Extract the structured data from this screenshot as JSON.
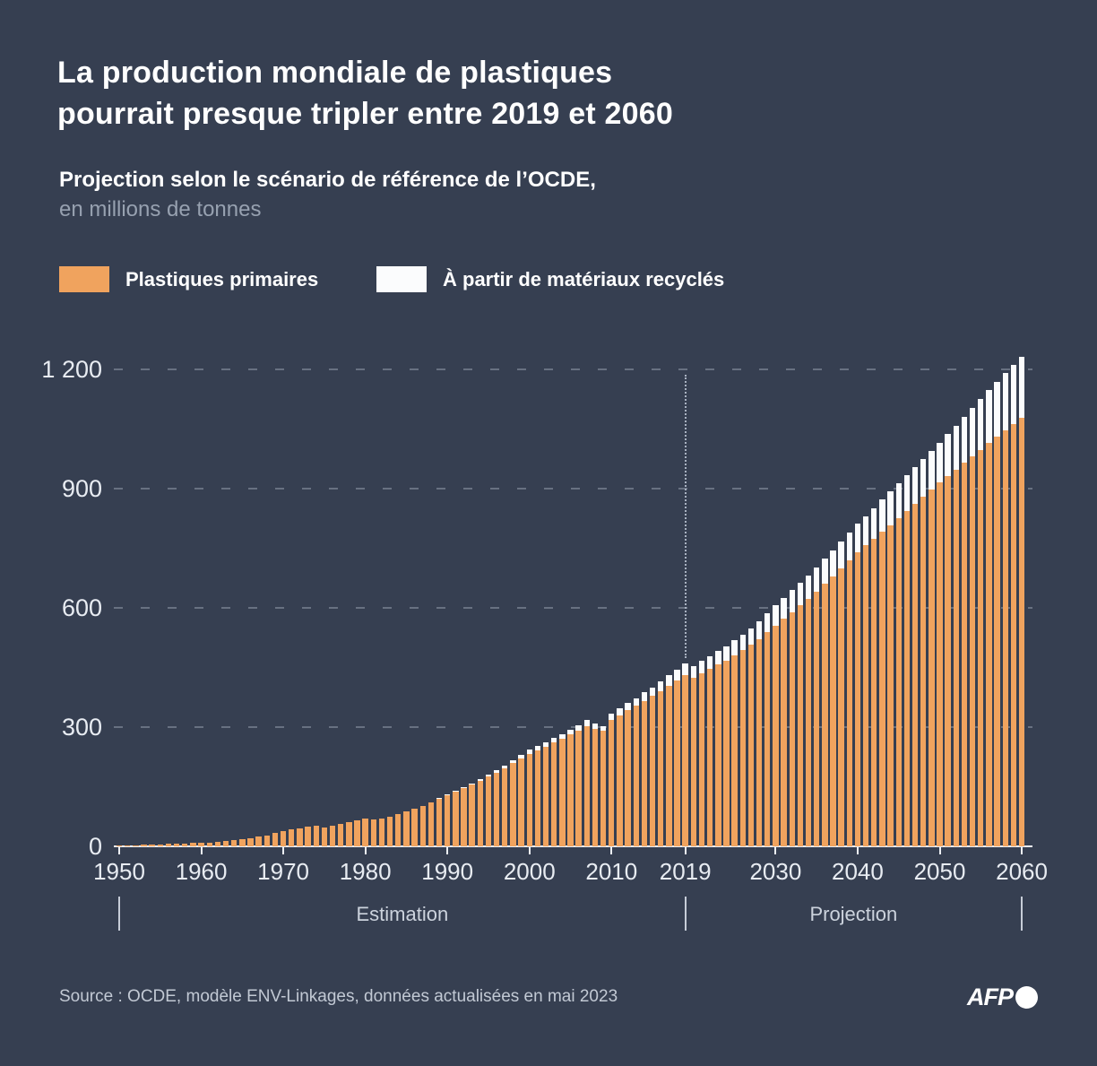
{
  "header": {
    "title": "La production mondiale de plastiques\npourrait presque tripler entre 2019 et 2060",
    "subtitle_bold": "Projection selon le scénario de référence de l’OCDE,",
    "subtitle_muted": "en millions de tonnes"
  },
  "legend": {
    "items": [
      {
        "label": "Plastiques primaires",
        "color": "#f0a35e"
      },
      {
        "label": "À partir de matériaux recyclés",
        "color": "#fbfcfd"
      }
    ]
  },
  "chart_data": {
    "type": "bar",
    "stacked": true,
    "title": "La production mondiale de plastiques pourrait presque tripler entre 2019 et 2060",
    "unit": "millions de tonnes",
    "ylabel": "en millions de tonnes",
    "ylim": [
      0,
      1236
    ],
    "grid": "dashed horizontal",
    "years": [
      1950,
      1951,
      1952,
      1953,
      1954,
      1955,
      1956,
      1957,
      1958,
      1959,
      1960,
      1961,
      1962,
      1963,
      1964,
      1965,
      1966,
      1967,
      1968,
      1969,
      1970,
      1971,
      1972,
      1973,
      1974,
      1975,
      1976,
      1977,
      1978,
      1979,
      1980,
      1981,
      1982,
      1983,
      1984,
      1985,
      1986,
      1987,
      1988,
      1989,
      1990,
      1991,
      1992,
      1993,
      1994,
      1995,
      1996,
      1997,
      1998,
      1999,
      2000,
      2001,
      2002,
      2003,
      2004,
      2005,
      2006,
      2007,
      2008,
      2009,
      2010,
      2011,
      2012,
      2013,
      2014,
      2015,
      2016,
      2017,
      2018,
      2019,
      2020,
      2021,
      2022,
      2023,
      2024,
      2025,
      2026,
      2027,
      2028,
      2029,
      2030,
      2031,
      2032,
      2033,
      2034,
      2035,
      2036,
      2037,
      2038,
      2039,
      2040,
      2041,
      2042,
      2043,
      2044,
      2045,
      2046,
      2047,
      2048,
      2049,
      2050,
      2051,
      2052,
      2053,
      2054,
      2055,
      2056,
      2057,
      2058,
      2059,
      2060
    ],
    "series": [
      {
        "name": "Plastiques primaires",
        "color": "#f0a35e",
        "values": [
          2,
          3,
          3,
          4,
          4,
          5,
          6,
          7,
          7,
          8,
          9,
          10,
          12,
          14,
          16,
          18,
          21,
          24,
          28,
          33,
          38,
          42,
          46,
          50,
          53,
          48,
          52,
          56,
          61,
          66,
          70,
          68,
          70,
          75,
          81,
          88,
          95,
          102,
          110,
          119,
          128,
          137,
          146,
          155,
          165,
          175,
          186,
          197,
          209,
          221,
          233,
          242,
          251,
          261,
          271,
          281,
          292,
          303,
          296,
          290,
          318,
          330,
          342,
          354,
          366,
          378,
          391,
          404,
          417,
          431,
          424,
          436,
          446,
          457,
          468,
          480,
          493,
          507,
          522,
          538,
          555,
          572,
          589,
          606,
          623,
          640,
          660,
          680,
          700,
          720,
          740,
          757,
          774,
          791,
          808,
          825,
          843,
          861,
          879,
          897,
          915,
          932,
          948,
          965,
          982,
          998,
          1014,
          1030,
          1046,
          1062,
          1078
        ]
      },
      {
        "name": "À partir de matériaux recyclés",
        "color": "#fbfcfd",
        "values": [
          0,
          0,
          0,
          0,
          0,
          0,
          0,
          0,
          0,
          0,
          0,
          0,
          0,
          0,
          0,
          0,
          0,
          0,
          0,
          0,
          0,
          0,
          0,
          0,
          0,
          0,
          0,
          0,
          0,
          0,
          0,
          0,
          0,
          0,
          0,
          0,
          0,
          0,
          1,
          2,
          3,
          3,
          4,
          4,
          5,
          5,
          6,
          7,
          8,
          9,
          10,
          10,
          11,
          11,
          12,
          12,
          13,
          14,
          14,
          13,
          16,
          17,
          18,
          19,
          21,
          22,
          24,
          26,
          28,
          29,
          29,
          30,
          32,
          34,
          36,
          38,
          40,
          42,
          45,
          48,
          51,
          53,
          55,
          57,
          59,
          61,
          63,
          65,
          67,
          69,
          71,
          74,
          77,
          81,
          85,
          89,
          91,
          93,
          95,
          97,
          100,
          105,
          110,
          115,
          121,
          127,
          133,
          139,
          145,
          149,
          153
        ]
      }
    ],
    "y_ticks": [
      {
        "value": 0,
        "label": "0"
      },
      {
        "value": 300,
        "label": "300"
      },
      {
        "value": 600,
        "label": "600"
      },
      {
        "value": 900,
        "label": "900"
      },
      {
        "value": 1200,
        "label": "1 200"
      }
    ],
    "x_ticks": [
      {
        "year": 1950,
        "label": "1950"
      },
      {
        "year": 1960,
        "label": "1960"
      },
      {
        "year": 1970,
        "label": "1970"
      },
      {
        "year": 1980,
        "label": "1980"
      },
      {
        "year": 1990,
        "label": "1990"
      },
      {
        "year": 2000,
        "label": "2000"
      },
      {
        "year": 2010,
        "label": "2010"
      },
      {
        "year": 2019,
        "label": "2019"
      },
      {
        "year": 2030,
        "label": "2030"
      },
      {
        "year": 2040,
        "label": "2040"
      },
      {
        "year": 2050,
        "label": "2050"
      },
      {
        "year": 2060,
        "label": "2060"
      }
    ],
    "reference_year": 2019,
    "phases": [
      {
        "label": "Estimation",
        "from": 1950,
        "to": 2019
      },
      {
        "label": "Projection",
        "from": 2019,
        "to": 2060
      }
    ],
    "phase_separators": [
      1950,
      2019,
      2060
    ]
  },
  "footer": {
    "source": "Source : OCDE, modèle ENV-Linkages, données actualisées en mai 2023",
    "logo_text": "AFP"
  },
  "colors": {
    "background": "#363f51",
    "title_text": "#ffffff",
    "muted_text": "#97a1b0",
    "axis_text": "#e8ecf2",
    "primary_bar": "#f0a35e",
    "recycled_bar": "#fbfcfd",
    "gridline": "rgba(221,229,241,0.30)",
    "reference_line": "#a9b2c1"
  }
}
